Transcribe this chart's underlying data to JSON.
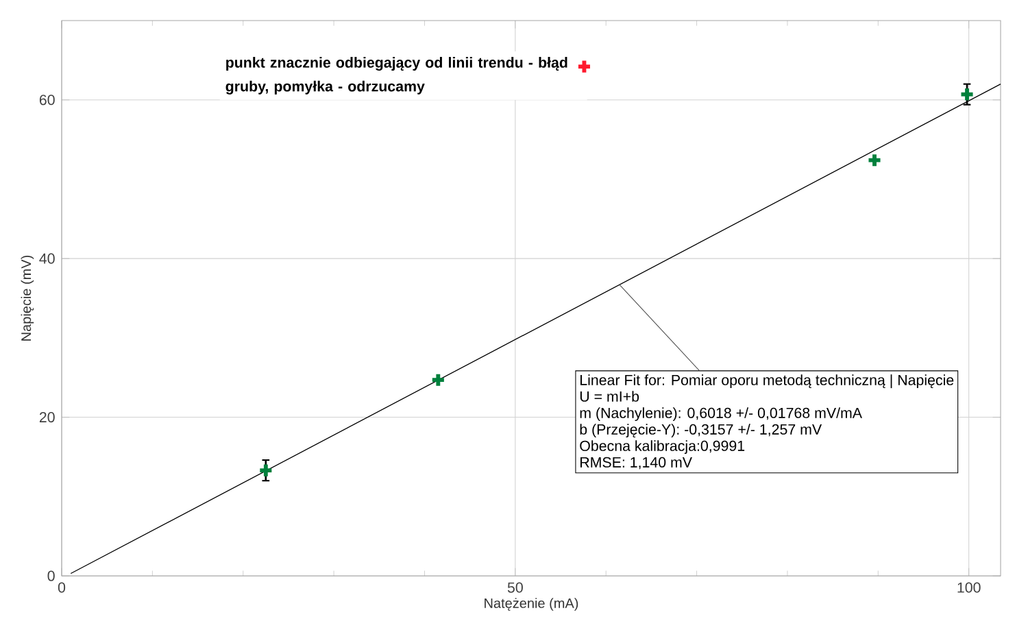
{
  "chart_data": {
    "type": "scatter",
    "xlabel": "Natężenie (mA)",
    "ylabel": "Napięcie (mV)",
    "xlim": [
      0,
      103.5
    ],
    "ylim": [
      0,
      70
    ],
    "xticks": [
      0,
      50,
      100
    ],
    "yticks": [
      0,
      20,
      40,
      60
    ],
    "grid": true,
    "marker": "cross",
    "series": [
      {
        "color": "#00803c",
        "x": [
          22.5,
          41.5,
          89.6,
          99.8
        ],
        "values": [
          13.3,
          24.7,
          52.4,
          60.7
        ],
        "errors": [
          1.3,
          null,
          null,
          1.3
        ]
      },
      {
        "color": "#ff1a2e",
        "x": [
          57.6
        ],
        "values": [
          64.2
        ]
      },
      {
        "type": "line",
        "color": "#000000",
        "marker": "none",
        "x": [
          1,
          103.5
        ],
        "values": [
          0.3,
          62.0
        ]
      }
    ],
    "annotations": [
      "punkt znacznie odbiegający od linii trendu - błąd gruby, pomyłka - odrzucamy",
      {
        "text": "Linear Fit for: Pomiar oporu metodą techniczną | Napięcie",
        "x": 61.5,
        "y": 36.7
      },
      "U = mI+b",
      "m (Nachylenie): 0,6018 +/- 0,01768 mV/mA",
      "b (Przejęcie-Y): -0,3157 +/- 1,257 mV",
      "Obecna kalibracja:0,9991",
      "RMSE: 1,140 mV"
    ]
  }
}
